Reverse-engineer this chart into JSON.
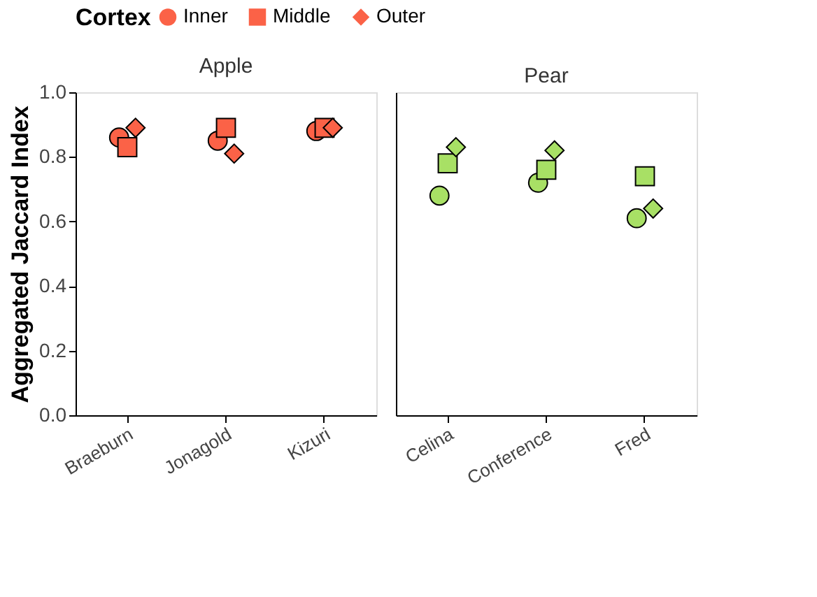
{
  "chart_data": [
    {
      "type": "scatter",
      "title": "Apple",
      "ylabel": "Aggregated Jaccard Index",
      "legend_title": "Cortex",
      "legend": "top",
      "categories": [
        "Braeburn",
        "Jonagold",
        "Kizuri"
      ],
      "ylim": [
        0,
        1.0
      ],
      "yticks": [
        {
          "value": 0,
          "label": "0.0"
        },
        0.2,
        0.4,
        0.6,
        0.8,
        {
          "value": 1,
          "label": "1.0"
        }
      ],
      "series": [
        {
          "name": "Inner",
          "marker": "circle",
          "color": "#fb6247",
          "values": [
            0.86,
            0.85,
            0.88
          ]
        },
        {
          "name": "Middle",
          "marker": "square",
          "color": "#fb6247",
          "values": [
            0.83,
            0.89,
            0.89
          ]
        },
        {
          "name": "Outer",
          "marker": "diamond",
          "color": "#fb6247",
          "values": [
            0.89,
            0.81,
            0.89
          ]
        }
      ]
    },
    {
      "type": "scatter",
      "title": "Pear",
      "categories": [
        "Celina",
        "Conference",
        "Fred"
      ],
      "ylim": [
        0,
        1.0
      ],
      "tick_labels": "x",
      "series": [
        {
          "marker": "circle",
          "color": "#a8e065",
          "values": [
            0.68,
            0.72,
            0.61
          ]
        },
        {
          "marker": "square",
          "color": "#a8e065",
          "values": [
            0.78,
            0.76,
            0.74
          ]
        },
        {
          "marker": "diamond",
          "color": "#a8e065",
          "values": [
            0.83,
            0.82,
            0.64
          ]
        }
      ]
    }
  ]
}
